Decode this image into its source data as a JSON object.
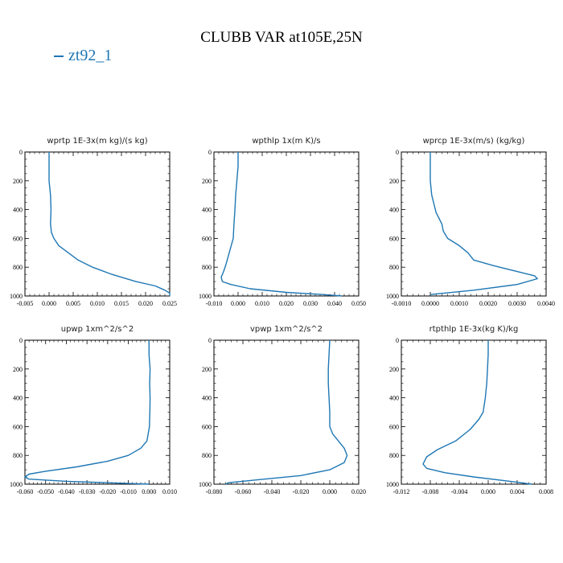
{
  "title": "CLUBB VAR at105E,25N",
  "legend": [
    {
      "label": "zt92_1",
      "color": "#1f77b4"
    }
  ],
  "chart_data": [
    {
      "type": "line",
      "title": "wprtp  1E-3x(m kg)/(s kg)",
      "xlim": [
        -0.005,
        0.025
      ],
      "xticks": [
        -0.005,
        0.0,
        0.005,
        0.01,
        0.015,
        0.02,
        0.025
      ],
      "xtick_labels": [
        "-0.005",
        "0.000",
        "0.005",
        "0.010",
        "0.015",
        "0.020",
        "0.025"
      ],
      "ylim": [
        0,
        1000
      ],
      "yticks": [
        0,
        200,
        400,
        600,
        800,
        1000
      ],
      "series": [
        {
          "color": "#1f77b4",
          "x": [
            0.0,
            0.0,
            0.0,
            0.0003,
            0.0004,
            0.0003,
            0.0005,
            0.001,
            0.002,
            0.004,
            0.006,
            0.009,
            0.013,
            0.018,
            0.022,
            0.024,
            0.025,
            0.025
          ],
          "y": [
            0,
            100,
            200,
            300,
            400,
            500,
            560,
            600,
            650,
            700,
            750,
            800,
            850,
            900,
            930,
            960,
            980,
            1000
          ]
        }
      ]
    },
    {
      "type": "line",
      "title": "wpthlp  1x(m K)/s",
      "xlim": [
        -0.01,
        0.05
      ],
      "xticks": [
        -0.01,
        0.0,
        0.01,
        0.02,
        0.03,
        0.04,
        0.05
      ],
      "xtick_labels": [
        "-0.010",
        "0.000",
        "0.010",
        "0.020",
        "0.030",
        "0.040",
        "0.050"
      ],
      "ylim": [
        0,
        1000
      ],
      "yticks": [
        0,
        200,
        400,
        600,
        800,
        1000
      ],
      "series": [
        {
          "color": "#1f77b4",
          "x": [
            0.0,
            0.0,
            -0.0005,
            -0.001,
            -0.0013,
            -0.0017,
            -0.002,
            -0.003,
            -0.004,
            -0.005,
            -0.006,
            -0.007,
            -0.0065,
            -0.003,
            0.005,
            0.02,
            0.035,
            0.043
          ],
          "y": [
            0,
            100,
            200,
            300,
            400,
            500,
            600,
            660,
            720,
            780,
            830,
            870,
            900,
            920,
            950,
            975,
            990,
            1000
          ]
        }
      ]
    },
    {
      "type": "line",
      "title": "wprcp  1E-3x(m/s) (kg/kg)",
      "xlim": [
        -0.001,
        0.004
      ],
      "xticks": [
        -0.001,
        0.0,
        0.001,
        0.002,
        0.003,
        0.004
      ],
      "xtick_labels": [
        "-0.0010",
        "0.0000",
        "0.0010",
        "0.0020",
        "0.0030",
        "0.0040"
      ],
      "ylim": [
        0,
        1000
      ],
      "yticks": [
        0,
        200,
        400,
        600,
        800,
        1000
      ],
      "series": [
        {
          "color": "#1f77b4",
          "x": [
            0.0,
            0.0,
            0.0,
            5e-05,
            0.0002,
            0.0004,
            0.00045,
            0.0006,
            0.001,
            0.0013,
            0.0015,
            0.0022,
            0.003,
            0.0036,
            0.0037,
            0.003,
            0.0015,
            0.0
          ],
          "y": [
            0,
            100,
            200,
            300,
            420,
            500,
            550,
            600,
            650,
            700,
            750,
            790,
            830,
            860,
            880,
            920,
            960,
            990
          ]
        }
      ]
    },
    {
      "type": "line",
      "title": "upwp  1xm^2/s^2",
      "xlim": [
        -0.06,
        0.01
      ],
      "xticks": [
        -0.06,
        -0.05,
        -0.04,
        -0.03,
        -0.02,
        -0.01,
        0.0,
        0.01
      ],
      "xtick_labels": [
        "-0.060",
        "-0.050",
        "-0.040",
        "-0.030",
        "-0.020",
        "-0.010",
        "0.000",
        "0.010"
      ],
      "ylim": [
        0,
        1000
      ],
      "yticks": [
        0,
        200,
        400,
        600,
        800,
        1000
      ],
      "series": [
        {
          "color": "#1f77b4",
          "x": [
            0.0,
            0.0,
            0.0005,
            0.0003,
            0.0005,
            0.0004,
            0.0002,
            -0.001,
            -0.004,
            -0.01,
            -0.02,
            -0.035,
            -0.05,
            -0.058,
            -0.06,
            -0.058,
            -0.04,
            -0.01,
            0.0
          ],
          "y": [
            0,
            100,
            200,
            300,
            400,
            500,
            600,
            700,
            750,
            800,
            840,
            880,
            910,
            930,
            950,
            965,
            980,
            995,
            1000
          ]
        }
      ]
    },
    {
      "type": "line",
      "title": "vpwp  1xm^2/s^2",
      "xlim": [
        -0.08,
        0.02
      ],
      "xticks": [
        -0.08,
        -0.06,
        -0.04,
        -0.02,
        0.0,
        0.02
      ],
      "xtick_labels": [
        "-0.080",
        "-0.060",
        "-0.040",
        "-0.020",
        "0.000",
        "0.020"
      ],
      "ylim": [
        0,
        1000
      ],
      "yticks": [
        0,
        200,
        400,
        600,
        800,
        1000
      ],
      "series": [
        {
          "color": "#1f77b4",
          "x": [
            0.0,
            -0.0005,
            -0.001,
            -0.001,
            -0.0005,
            0.0,
            0.0,
            0.002,
            0.006,
            0.01,
            0.012,
            0.01,
            0.0,
            -0.02,
            -0.05,
            -0.07,
            -0.072
          ],
          "y": [
            0,
            100,
            200,
            300,
            400,
            500,
            600,
            650,
            700,
            750,
            800,
            850,
            900,
            940,
            970,
            990,
            1000
          ]
        }
      ]
    },
    {
      "type": "line",
      "title": "rtpthlp  1E-3x(kg K)/kg",
      "xlim": [
        -0.012,
        0.008
      ],
      "xticks": [
        -0.012,
        -0.008,
        -0.004,
        0.0,
        0.004,
        0.008
      ],
      "xtick_labels": [
        "-0.012",
        "-0.008",
        "-0.004",
        "0.000",
        "0.004",
        "0.008"
      ],
      "ylim": [
        0,
        1000
      ],
      "yticks": [
        0,
        200,
        400,
        600,
        800,
        1000
      ],
      "series": [
        {
          "color": "#1f77b4",
          "x": [
            0.0,
            0.0,
            -0.0001,
            -0.0002,
            -0.0004,
            -0.0007,
            -0.0013,
            -0.0025,
            -0.0045,
            -0.007,
            -0.0085,
            -0.009,
            -0.0085,
            -0.006,
            -0.002,
            0.003,
            0.006
          ],
          "y": [
            0,
            100,
            200,
            300,
            400,
            500,
            550,
            620,
            700,
            760,
            810,
            860,
            890,
            920,
            950,
            980,
            1000
          ]
        }
      ]
    }
  ]
}
